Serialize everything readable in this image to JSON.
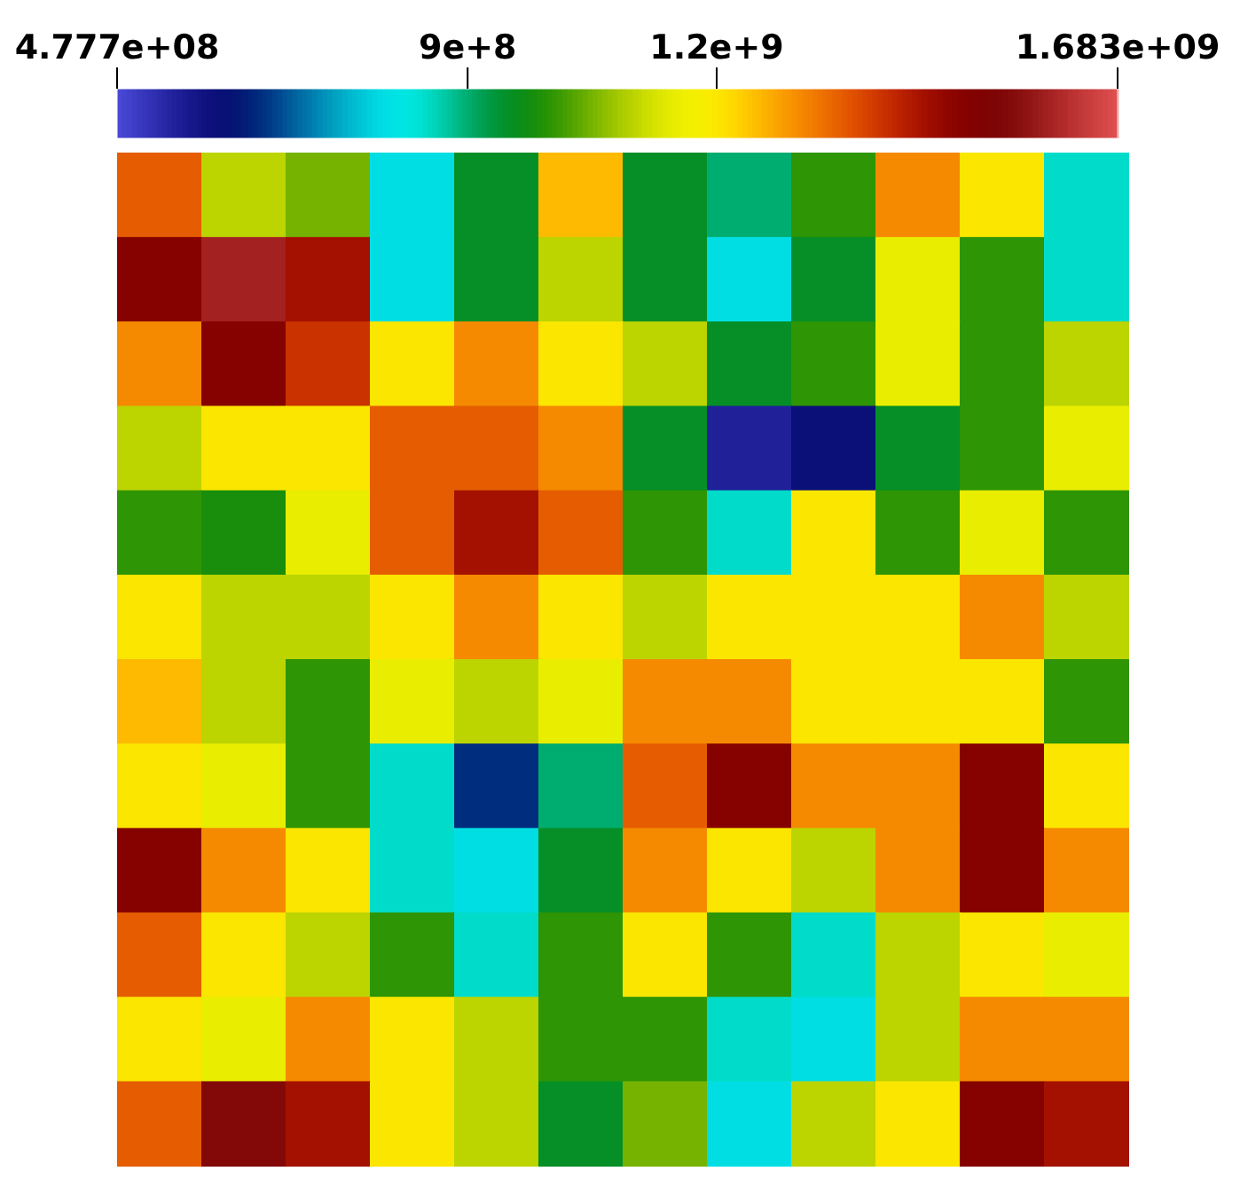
{
  "chart_data": {
    "type": "heatmap",
    "categories": [
      null,
      null,
      null,
      null,
      null,
      null,
      null,
      null,
      null,
      null,
      null,
      null
    ],
    "y_categories": [
      null,
      null,
      null,
      null,
      null,
      null,
      null,
      null,
      null,
      null,
      null,
      null
    ],
    "cells": [
      [
        1350000000.0,
        1100000000.0,
        1050000000.0,
        800000000.0,
        950000000.0,
        1250000000.0,
        950000000.0,
        900000000.0,
        1000000000.0,
        1300000000.0,
        1200000000.0,
        850000000.0
      ],
      [
        1500000000.0,
        1600000000.0,
        1450000000.0,
        800000000.0,
        950000000.0,
        1100000000.0,
        950000000.0,
        800000000.0,
        950000000.0,
        1150000000.0,
        1000000000.0,
        850000000.0
      ],
      [
        1300000000.0,
        1500000000.0,
        1400000000.0,
        1200000000.0,
        1300000000.0,
        1200000000.0,
        1100000000.0,
        950000000.0,
        1000000000.0,
        1150000000.0,
        1000000000.0,
        1100000000.0
      ],
      [
        1100000000.0,
        1200000000.0,
        1200000000.0,
        1350000000.0,
        1350000000.0,
        1300000000.0,
        950000000.0,
        550000000.0,
        600000000.0,
        950000000.0,
        1000000000.0,
        1150000000.0
      ],
      [
        1000000000.0,
        980000000.0,
        1150000000.0,
        1350000000.0,
        1450000000.0,
        1350000000.0,
        1000000000.0,
        850000000.0,
        1200000000.0,
        1000000000.0,
        1150000000.0,
        1000000000.0
      ],
      [
        1200000000.0,
        1100000000.0,
        1100000000.0,
        1200000000.0,
        1300000000.0,
        1200000000.0,
        1100000000.0,
        1200000000.0,
        1200000000.0,
        1200000000.0,
        1300000000.0,
        1100000000.0
      ],
      [
        1250000000.0,
        1100000000.0,
        1000000000.0,
        1150000000.0,
        1100000000.0,
        1150000000.0,
        1300000000.0,
        1300000000.0,
        1200000000.0,
        1200000000.0,
        1200000000.0,
        1000000000.0
      ],
      [
        1200000000.0,
        1150000000.0,
        1000000000.0,
        850000000.0,
        650000000.0,
        900000000.0,
        1350000000.0,
        1500000000.0,
        1300000000.0,
        1300000000.0,
        1500000000.0,
        1200000000.0
      ],
      [
        1500000000.0,
        1300000000.0,
        1200000000.0,
        850000000.0,
        800000000.0,
        950000000.0,
        1300000000.0,
        1200000000.0,
        1100000000.0,
        1300000000.0,
        1500000000.0,
        1300000000.0
      ],
      [
        1350000000.0,
        1200000000.0,
        1100000000.0,
        1000000000.0,
        850000000.0,
        1000000000.0,
        1200000000.0,
        1000000000.0,
        850000000.0,
        1100000000.0,
        1200000000.0,
        1150000000.0
      ],
      [
        1200000000.0,
        1150000000.0,
        1300000000.0,
        1200000000.0,
        1100000000.0,
        1000000000.0,
        1000000000.0,
        850000000.0,
        800000000.0,
        1100000000.0,
        1300000000.0,
        1300000000.0
      ],
      [
        1350000000.0,
        1550000000.0,
        1450000000.0,
        1200000000.0,
        1100000000.0,
        950000000.0,
        1050000000.0,
        800000000.0,
        1100000000.0,
        1200000000.0,
        1500000000.0,
        1450000000.0
      ]
    ],
    "clim": [
      477700000,
      1683000000
    ],
    "cticks": [
      {
        "value": 477700000,
        "label": "4.777e+08"
      },
      {
        "value": 900000000,
        "label": "9e+8"
      },
      {
        "value": 1200000000,
        "label": "1.2e+9"
      },
      {
        "value": 1683000000,
        "label": "1.683e+09"
      }
    ]
  }
}
